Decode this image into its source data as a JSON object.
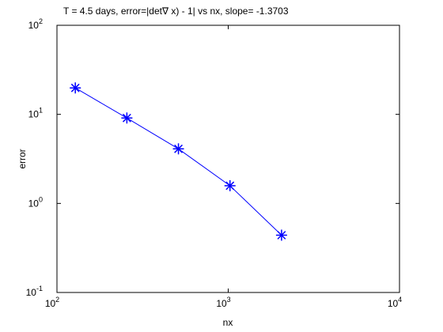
{
  "chart_data": {
    "type": "line",
    "title": "T = 4.5 days, error=|det∇ x) - 1| vs nx,  slope= -1.3703",
    "x_label": "nx",
    "y_label": "error",
    "x": [
      128,
      256,
      512,
      1024,
      2048
    ],
    "series": [
      {
        "name": "error",
        "color": "#0000ff",
        "marker": "asterisk",
        "values": [
          19.8,
          9.1,
          4.1,
          1.58,
          0.44
        ]
      }
    ],
    "x_log": true,
    "y_log": true,
    "xlim": [
      100,
      10000
    ],
    "ylim": [
      0.1,
      100
    ],
    "xticks": [
      {
        "value": 100,
        "label": "10",
        "exp": "2"
      },
      {
        "value": 1000,
        "label": "10",
        "exp": "3"
      },
      {
        "value": 10000,
        "label": "10",
        "exp": "4"
      }
    ],
    "yticks": [
      {
        "value": 0.1,
        "label": "10",
        "exp": "-1"
      },
      {
        "value": 1,
        "label": "10",
        "exp": "0"
      },
      {
        "value": 10,
        "label": "10",
        "exp": "1"
      },
      {
        "value": 100,
        "label": "10",
        "exp": "2"
      }
    ],
    "grid": false,
    "legend": false
  }
}
